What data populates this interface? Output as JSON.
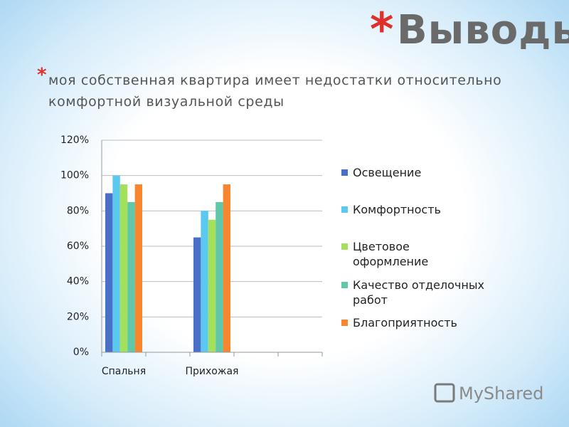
{
  "title_marker": "*",
  "title": "Выводы:",
  "bullet_marker": "*",
  "bullet": "моя собственная квартира имеет недостатки относительно комфортной визуальной среды",
  "watermark": "MyShared",
  "chart_data": {
    "type": "bar",
    "categories": [
      "Спальня",
      null,
      "Прихожая",
      null,
      null
    ],
    "series": [
      {
        "name": "Освещение",
        "color": "#4a6fc6",
        "values": [
          90,
          null,
          65,
          null,
          null
        ]
      },
      {
        "name": "Комфортность",
        "color": "#5bc8ef",
        "values": [
          100,
          null,
          80,
          null,
          null
        ]
      },
      {
        "name": "Цветовое оформление",
        "color": "#a4e05a",
        "values": [
          95,
          null,
          75,
          null,
          null
        ]
      },
      {
        "name": "Качество отделочных работ",
        "color": "#5ec8a8",
        "values": [
          85,
          null,
          85,
          null,
          null
        ]
      },
      {
        "name": "Благоприятность",
        "color": "#f7862f",
        "values": [
          95,
          null,
          95,
          null,
          null
        ]
      }
    ],
    "ylim": [
      0,
      120
    ],
    "yticks": [
      {
        "value": 0,
        "label": "0%"
      },
      {
        "value": 20,
        "label": "20%"
      },
      {
        "value": 40,
        "label": "40%"
      },
      {
        "value": 60,
        "label": "60%"
      },
      {
        "value": 80,
        "label": "80%"
      },
      {
        "value": 100,
        "label": "100%"
      },
      {
        "value": 120,
        "label": "120%"
      }
    ],
    "grid": true,
    "legend": "right"
  }
}
